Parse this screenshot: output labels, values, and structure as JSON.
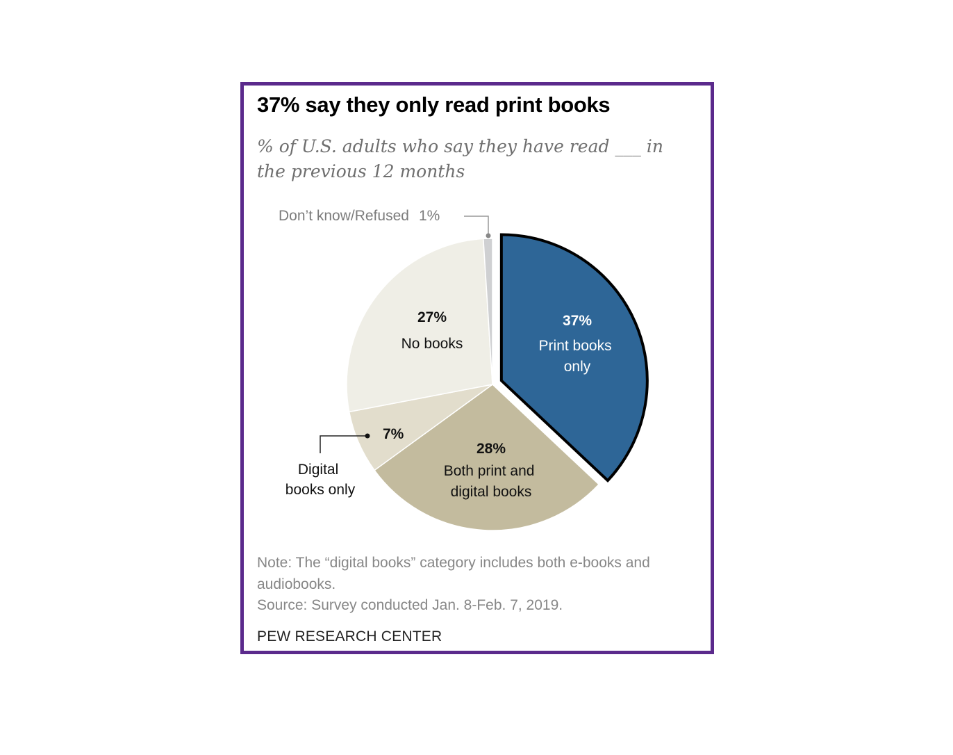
{
  "title": "37% say they only read print books",
  "subtitle": "% of U.S. adults who say they have read ___ in the previous 12 months",
  "note": "Note: The “digital books” category includes both e-books and audiobooks.",
  "source": "Source: Survey conducted Jan. 8-Feb. 7, 2019.",
  "brand": "PEW RESEARCH CENTER",
  "chart_data": {
    "type": "pie",
    "slices": [
      {
        "label": "Print books only",
        "value": 37,
        "value_label": "37%",
        "color": "#2e6697",
        "exploded": true,
        "outlined": true
      },
      {
        "label": "Both print and digital books",
        "value": 28,
        "value_label": "28%",
        "color": "#c3bb9e"
      },
      {
        "label": "Digital books only",
        "value": 7,
        "value_label": "7%",
        "color": "#e2ddcc"
      },
      {
        "label": "No books",
        "value": 27,
        "value_label": "27%",
        "color": "#efeee6"
      },
      {
        "label": "Don’t know/Refused",
        "value": 1,
        "value_label": "1%",
        "color": "#cfd0d2"
      }
    ],
    "start": "12 o'clock",
    "direction": "clockwise"
  }
}
